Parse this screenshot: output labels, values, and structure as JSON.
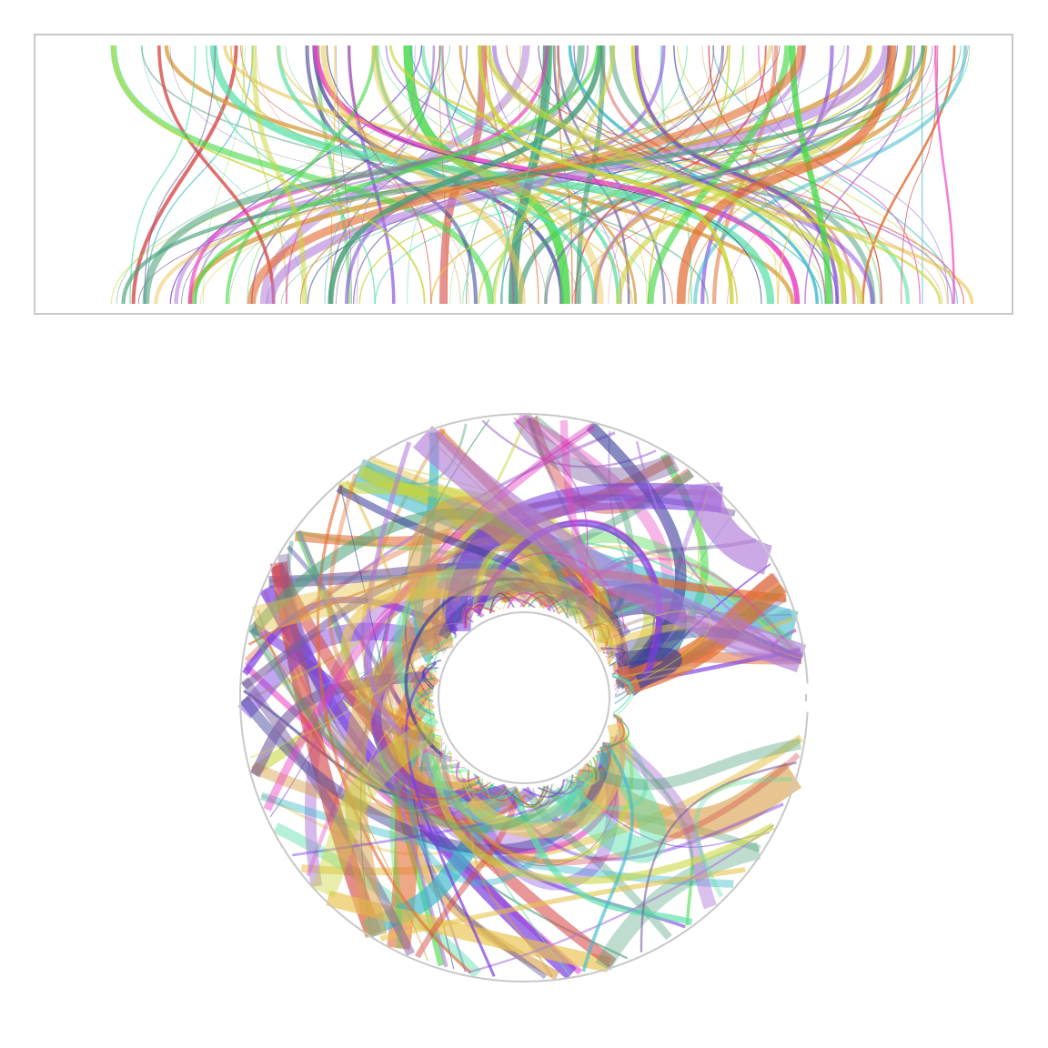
{
  "palette": [
    "#7b3fe0",
    "#4ad94a",
    "#e83ec1",
    "#3db9c9",
    "#c9d63a",
    "#d74a4a",
    "#3b3f9a",
    "#e36b2f",
    "#4aa07a",
    "#b07ad9",
    "#58e0a8",
    "#e8c44f",
    "#7a5fa0",
    "#d9a14a"
  ],
  "panels": [
    {
      "kind": "linear",
      "ribbon_count": 150,
      "seed": 11
    },
    {
      "kind": "circular",
      "ribbon_count": 190,
      "seed": 23
    }
  ]
}
